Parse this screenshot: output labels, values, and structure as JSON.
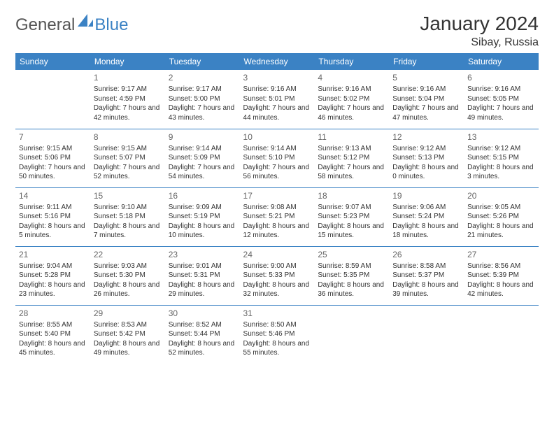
{
  "logo": {
    "text_a": "General",
    "text_b": "Blue"
  },
  "title": "January 2024",
  "location": "Sibay, Russia",
  "weekdays": [
    "Sunday",
    "Monday",
    "Tuesday",
    "Wednesday",
    "Thursday",
    "Friday",
    "Saturday"
  ],
  "colors": {
    "accent": "#3b82c4",
    "header_text": "#ffffff",
    "body_text": "#333333",
    "muted": "#666666",
    "background": "#ffffff"
  },
  "font": {
    "title_size": 28,
    "location_size": 16,
    "weekday_size": 12,
    "daynum_size": 12,
    "cell_size": 10
  },
  "weeks": [
    [
      {
        "day": "",
        "sunrise": "",
        "sunset": "",
        "daylight": ""
      },
      {
        "day": "1",
        "sunrise": "Sunrise: 9:17 AM",
        "sunset": "Sunset: 4:59 PM",
        "daylight": "Daylight: 7 hours and 42 minutes."
      },
      {
        "day": "2",
        "sunrise": "Sunrise: 9:17 AM",
        "sunset": "Sunset: 5:00 PM",
        "daylight": "Daylight: 7 hours and 43 minutes."
      },
      {
        "day": "3",
        "sunrise": "Sunrise: 9:16 AM",
        "sunset": "Sunset: 5:01 PM",
        "daylight": "Daylight: 7 hours and 44 minutes."
      },
      {
        "day": "4",
        "sunrise": "Sunrise: 9:16 AM",
        "sunset": "Sunset: 5:02 PM",
        "daylight": "Daylight: 7 hours and 46 minutes."
      },
      {
        "day": "5",
        "sunrise": "Sunrise: 9:16 AM",
        "sunset": "Sunset: 5:04 PM",
        "daylight": "Daylight: 7 hours and 47 minutes."
      },
      {
        "day": "6",
        "sunrise": "Sunrise: 9:16 AM",
        "sunset": "Sunset: 5:05 PM",
        "daylight": "Daylight: 7 hours and 49 minutes."
      }
    ],
    [
      {
        "day": "7",
        "sunrise": "Sunrise: 9:15 AM",
        "sunset": "Sunset: 5:06 PM",
        "daylight": "Daylight: 7 hours and 50 minutes."
      },
      {
        "day": "8",
        "sunrise": "Sunrise: 9:15 AM",
        "sunset": "Sunset: 5:07 PM",
        "daylight": "Daylight: 7 hours and 52 minutes."
      },
      {
        "day": "9",
        "sunrise": "Sunrise: 9:14 AM",
        "sunset": "Sunset: 5:09 PM",
        "daylight": "Daylight: 7 hours and 54 minutes."
      },
      {
        "day": "10",
        "sunrise": "Sunrise: 9:14 AM",
        "sunset": "Sunset: 5:10 PM",
        "daylight": "Daylight: 7 hours and 56 minutes."
      },
      {
        "day": "11",
        "sunrise": "Sunrise: 9:13 AM",
        "sunset": "Sunset: 5:12 PM",
        "daylight": "Daylight: 7 hours and 58 minutes."
      },
      {
        "day": "12",
        "sunrise": "Sunrise: 9:12 AM",
        "sunset": "Sunset: 5:13 PM",
        "daylight": "Daylight: 8 hours and 0 minutes."
      },
      {
        "day": "13",
        "sunrise": "Sunrise: 9:12 AM",
        "sunset": "Sunset: 5:15 PM",
        "daylight": "Daylight: 8 hours and 3 minutes."
      }
    ],
    [
      {
        "day": "14",
        "sunrise": "Sunrise: 9:11 AM",
        "sunset": "Sunset: 5:16 PM",
        "daylight": "Daylight: 8 hours and 5 minutes."
      },
      {
        "day": "15",
        "sunrise": "Sunrise: 9:10 AM",
        "sunset": "Sunset: 5:18 PM",
        "daylight": "Daylight: 8 hours and 7 minutes."
      },
      {
        "day": "16",
        "sunrise": "Sunrise: 9:09 AM",
        "sunset": "Sunset: 5:19 PM",
        "daylight": "Daylight: 8 hours and 10 minutes."
      },
      {
        "day": "17",
        "sunrise": "Sunrise: 9:08 AM",
        "sunset": "Sunset: 5:21 PM",
        "daylight": "Daylight: 8 hours and 12 minutes."
      },
      {
        "day": "18",
        "sunrise": "Sunrise: 9:07 AM",
        "sunset": "Sunset: 5:23 PM",
        "daylight": "Daylight: 8 hours and 15 minutes."
      },
      {
        "day": "19",
        "sunrise": "Sunrise: 9:06 AM",
        "sunset": "Sunset: 5:24 PM",
        "daylight": "Daylight: 8 hours and 18 minutes."
      },
      {
        "day": "20",
        "sunrise": "Sunrise: 9:05 AM",
        "sunset": "Sunset: 5:26 PM",
        "daylight": "Daylight: 8 hours and 21 minutes."
      }
    ],
    [
      {
        "day": "21",
        "sunrise": "Sunrise: 9:04 AM",
        "sunset": "Sunset: 5:28 PM",
        "daylight": "Daylight: 8 hours and 23 minutes."
      },
      {
        "day": "22",
        "sunrise": "Sunrise: 9:03 AM",
        "sunset": "Sunset: 5:30 PM",
        "daylight": "Daylight: 8 hours and 26 minutes."
      },
      {
        "day": "23",
        "sunrise": "Sunrise: 9:01 AM",
        "sunset": "Sunset: 5:31 PM",
        "daylight": "Daylight: 8 hours and 29 minutes."
      },
      {
        "day": "24",
        "sunrise": "Sunrise: 9:00 AM",
        "sunset": "Sunset: 5:33 PM",
        "daylight": "Daylight: 8 hours and 32 minutes."
      },
      {
        "day": "25",
        "sunrise": "Sunrise: 8:59 AM",
        "sunset": "Sunset: 5:35 PM",
        "daylight": "Daylight: 8 hours and 36 minutes."
      },
      {
        "day": "26",
        "sunrise": "Sunrise: 8:58 AM",
        "sunset": "Sunset: 5:37 PM",
        "daylight": "Daylight: 8 hours and 39 minutes."
      },
      {
        "day": "27",
        "sunrise": "Sunrise: 8:56 AM",
        "sunset": "Sunset: 5:39 PM",
        "daylight": "Daylight: 8 hours and 42 minutes."
      }
    ],
    [
      {
        "day": "28",
        "sunrise": "Sunrise: 8:55 AM",
        "sunset": "Sunset: 5:40 PM",
        "daylight": "Daylight: 8 hours and 45 minutes."
      },
      {
        "day": "29",
        "sunrise": "Sunrise: 8:53 AM",
        "sunset": "Sunset: 5:42 PM",
        "daylight": "Daylight: 8 hours and 49 minutes."
      },
      {
        "day": "30",
        "sunrise": "Sunrise: 8:52 AM",
        "sunset": "Sunset: 5:44 PM",
        "daylight": "Daylight: 8 hours and 52 minutes."
      },
      {
        "day": "31",
        "sunrise": "Sunrise: 8:50 AM",
        "sunset": "Sunset: 5:46 PM",
        "daylight": "Daylight: 8 hours and 55 minutes."
      },
      {
        "day": "",
        "sunrise": "",
        "sunset": "",
        "daylight": ""
      },
      {
        "day": "",
        "sunrise": "",
        "sunset": "",
        "daylight": ""
      },
      {
        "day": "",
        "sunrise": "",
        "sunset": "",
        "daylight": ""
      }
    ]
  ]
}
